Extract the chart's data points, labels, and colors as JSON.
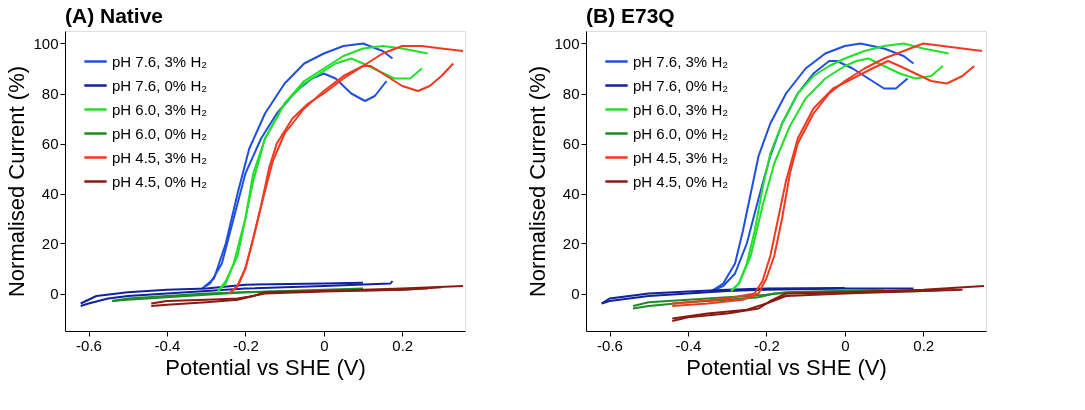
{
  "chart_data": [
    {
      "type": "line",
      "title": "(A) Native",
      "xlabel": "Potential vs SHE (V)",
      "ylabel": "Normalised Current (%)",
      "xlim": [
        -0.66,
        0.36
      ],
      "ylim": [
        -15,
        105
      ],
      "xticks": [
        -0.6,
        -0.4,
        -0.2,
        0,
        0.2
      ],
      "yticks": [
        0,
        20,
        40,
        60,
        80,
        100
      ],
      "grid": false,
      "legend": "top left",
      "series": [
        {
          "name": "pH 7.6, 3% H₂",
          "color": "#1f4fe0",
          "x": [
            -0.31,
            -0.28,
            -0.25,
            -0.22,
            -0.19,
            -0.15,
            -0.1,
            -0.05,
            0,
            0.05,
            0.1,
            0.15,
            0.175
          ],
          "values": [
            2,
            6,
            20,
            40,
            58,
            72,
            84,
            92,
            96,
            99,
            100,
            97,
            94
          ]
        },
        {
          "color": "#1f4fe0",
          "x": [
            0.16,
            0.13,
            0.105,
            0.07,
            0.03,
            0,
            -0.03,
            -0.07,
            -0.12,
            -0.16,
            -0.2,
            -0.23,
            -0.26,
            -0.29,
            -0.31
          ],
          "values": [
            85,
            79,
            77,
            80,
            86,
            88,
            86,
            81,
            72,
            62,
            48,
            30,
            12,
            4,
            2
          ]
        },
        {
          "name": "pH 7.6, 0% H₂",
          "color": "#10239a",
          "x": [
            -0.62,
            -0.6,
            -0.55,
            -0.5,
            -0.4,
            -0.3,
            -0.2,
            0,
            0.17,
            0.175
          ],
          "values": [
            -5,
            -4,
            -2,
            -1,
            0,
            1,
            2,
            3,
            4,
            5
          ]
        },
        {
          "color": "#10239a",
          "x": [
            0.1,
            0,
            -0.2,
            -0.3,
            -0.4,
            -0.5,
            -0.58,
            -0.62
          ],
          "values": [
            4.3,
            4,
            3.5,
            2,
            1.5,
            0.5,
            -1,
            -4
          ]
        },
        {
          "name": "pH 6.0, 3% H₂",
          "color": "#22e02a",
          "x": [
            -0.27,
            -0.25,
            -0.22,
            -0.2,
            -0.18,
            -0.15,
            -0.1,
            -0.05,
            0,
            0.05,
            0.1,
            0.15,
            0.2,
            0.265
          ],
          "values": [
            1,
            5,
            15,
            30,
            48,
            62,
            76,
            85,
            90,
            95,
            98,
            99,
            98,
            96
          ]
        },
        {
          "color": "#22e02a",
          "x": [
            0.25,
            0.22,
            0.18,
            0.14,
            0.1,
            0.07,
            0.03,
            0,
            -0.05,
            -0.1,
            -0.15,
            -0.18,
            -0.2,
            -0.23,
            -0.25,
            -0.27
          ],
          "values": [
            90,
            86,
            86,
            89,
            92,
            94,
            92,
            89,
            84,
            76,
            62,
            45,
            30,
            12,
            4,
            1
          ]
        },
        {
          "name": "pH 6.0, 0% H₂",
          "color": "#1f8a2a",
          "x": [
            -0.54,
            -0.5,
            -0.4,
            -0.3,
            -0.2,
            0,
            0.2,
            0.265
          ],
          "values": [
            -3,
            -2.5,
            -1.5,
            -0.5,
            0.5,
            1,
            1.5,
            2
          ]
        },
        {
          "color": "#1f8a2a",
          "x": [
            0.1,
            0,
            -0.2,
            -0.3,
            -0.4,
            -0.5,
            -0.54
          ],
          "values": [
            2,
            1.5,
            0.5,
            0,
            -1,
            -2,
            -3
          ]
        },
        {
          "name": "pH 4.5, 3% H₂",
          "color": "#f03a20",
          "x": [
            -0.24,
            -0.22,
            -0.2,
            -0.18,
            -0.16,
            -0.14,
            -0.12,
            -0.08,
            -0.04,
            0,
            0.05,
            0.1,
            0.15,
            0.2,
            0.25,
            0.3,
            0.355
          ],
          "values": [
            0,
            3,
            10,
            22,
            35,
            50,
            60,
            70,
            76,
            80,
            86,
            91,
            96,
            99,
            99,
            98,
            97
          ]
        },
        {
          "color": "#f03a20",
          "x": [
            0.33,
            0.3,
            0.27,
            0.24,
            0.2,
            0.16,
            0.12,
            0.1,
            0.05,
            0,
            -0.05,
            -0.1,
            -0.13,
            -0.16,
            -0.18,
            -0.2,
            -0.22,
            -0.24
          ],
          "values": [
            92,
            87,
            83,
            81,
            83,
            87,
            91,
            91,
            87,
            81,
            74,
            64,
            53,
            35,
            22,
            10,
            3,
            0
          ]
        },
        {
          "name": "pH 4.5, 0% H₂",
          "color": "#8b1a12",
          "x": [
            -0.44,
            -0.4,
            -0.3,
            -0.22,
            -0.18,
            -0.15,
            0,
            0.2,
            0.355
          ],
          "values": [
            -5,
            -4.5,
            -3.5,
            -2.5,
            -1,
            0.5,
            1,
            2,
            3
          ]
        },
        {
          "color": "#8b1a12",
          "x": [
            0.3,
            0.2,
            0,
            -0.15,
            -0.18,
            -0.22,
            -0.3,
            -0.4,
            -0.44
          ],
          "values": [
            2.5,
            1.5,
            0.8,
            0,
            -1,
            -2,
            -2.5,
            -3,
            -4
          ]
        }
      ]
    },
    {
      "type": "line",
      "title": "(B) E73Q",
      "xlabel": "Potential vs SHE (V)",
      "ylabel": "Normalised Current (%)",
      "xlim": [
        -0.66,
        0.36
      ],
      "ylim": [
        -15,
        105
      ],
      "xticks": [
        -0.6,
        -0.4,
        -0.2,
        0,
        0.2
      ],
      "yticks": [
        0,
        20,
        40,
        60,
        80,
        100
      ],
      "grid": false,
      "legend": "top left",
      "series": [
        {
          "name": "pH 7.6, 3% H₂",
          "color": "#1f4fe0",
          "x": [
            -0.34,
            -0.31,
            -0.28,
            -0.26,
            -0.24,
            -0.22,
            -0.19,
            -0.15,
            -0.1,
            -0.05,
            0,
            0.04,
            0.1,
            0.15,
            0.175
          ],
          "values": [
            1,
            4,
            12,
            25,
            40,
            55,
            68,
            80,
            90,
            96,
            99,
            100,
            98,
            95,
            92
          ]
        },
        {
          "color": "#1f4fe0",
          "x": [
            0.16,
            0.13,
            0.1,
            0.06,
            0.02,
            -0.02,
            -0.04,
            -0.08,
            -0.12,
            -0.16,
            -0.19,
            -0.22,
            -0.25,
            -0.28,
            -0.31,
            -0.34
          ],
          "values": [
            86,
            82,
            82,
            86,
            90,
            93,
            93,
            88,
            80,
            68,
            55,
            38,
            20,
            8,
            3,
            1
          ]
        },
        {
          "name": "pH 7.6, 0% H₂",
          "color": "#10239a",
          "x": [
            -0.62,
            -0.6,
            -0.5,
            -0.4,
            -0.3,
            -0.2,
            0,
            0.175
          ],
          "values": [
            -4,
            -3,
            -1,
            0,
            1,
            1.5,
            2,
            2
          ]
        },
        {
          "color": "#10239a",
          "x": [
            0,
            -0.2,
            -0.3,
            -0.4,
            -0.5,
            -0.6,
            -0.62
          ],
          "values": [
            2.2,
            2,
            1.5,
            0.8,
            0,
            -2,
            -4
          ]
        },
        {
          "name": "pH 6.0, 3% H₂",
          "color": "#22e02a",
          "x": [
            -0.29,
            -0.27,
            -0.25,
            -0.23,
            -0.21,
            -0.19,
            -0.16,
            -0.12,
            -0.08,
            -0.04,
            0,
            0.05,
            0.1,
            0.15,
            0.2,
            0.265
          ],
          "values": [
            1,
            4,
            12,
            25,
            42,
            56,
            68,
            80,
            87,
            91,
            94,
            97,
            99,
            100,
            98,
            96
          ]
        },
        {
          "color": "#22e02a",
          "x": [
            0.25,
            0.22,
            0.18,
            0.14,
            0.1,
            0.06,
            0.03,
            0,
            -0.05,
            -0.1,
            -0.14,
            -0.18,
            -0.21,
            -0.24,
            -0.27,
            -0.29
          ],
          "values": [
            91,
            87,
            86,
            88,
            91,
            94,
            93,
            91,
            86,
            78,
            67,
            52,
            35,
            15,
            4,
            1
          ]
        },
        {
          "name": "pH 6.0, 0% H₂",
          "color": "#1f8a2a",
          "x": [
            -0.54,
            -0.5,
            -0.4,
            -0.3,
            -0.22,
            -0.18,
            0,
            0.2,
            0.265
          ],
          "values": [
            -6,
            -5,
            -3.5,
            -2.5,
            -1.5,
            0,
            0.5,
            1,
            1.5
          ]
        },
        {
          "color": "#1f8a2a",
          "x": [
            0.1,
            -0.15,
            -0.2,
            -0.3,
            -0.4,
            -0.5,
            -0.54
          ],
          "values": [
            1.5,
            0.5,
            -0.5,
            -1.5,
            -2.5,
            -3.5,
            -5
          ]
        },
        {
          "name": "pH 4.5, 3% H₂",
          "color": "#f03a20",
          "x": [
            -0.44,
            -0.35,
            -0.26,
            -0.22,
            -0.2,
            -0.18,
            -0.16,
            -0.14,
            -0.12,
            -0.08,
            -0.04,
            0,
            0.05,
            0.1,
            0.15,
            0.2,
            0.25,
            0.3,
            0.35
          ],
          "values": [
            -5,
            -4,
            -2.5,
            0,
            6,
            15,
            30,
            48,
            60,
            72,
            80,
            85,
            90,
            94,
            97,
            100,
            99,
            98,
            97
          ]
        },
        {
          "color": "#f03a20",
          "x": [
            0.33,
            0.3,
            0.26,
            0.22,
            0.18,
            0.14,
            0.11,
            0.07,
            0.02,
            -0.03,
            -0.08,
            -0.12,
            -0.15,
            -0.17,
            -0.19,
            -0.21,
            -0.23,
            -0.3,
            -0.4,
            -0.44
          ],
          "values": [
            91,
            87,
            84,
            85,
            88,
            91,
            93,
            90,
            86,
            82,
            74,
            62,
            45,
            30,
            15,
            5,
            0,
            -2,
            -3.5,
            -4
          ]
        },
        {
          "name": "pH 4.5, 0% H₂",
          "color": "#8b1a12",
          "x": [
            -0.44,
            -0.4,
            -0.3,
            -0.22,
            -0.19,
            -0.15,
            0,
            0.2,
            0.355
          ],
          "values": [
            -11,
            -9.5,
            -8,
            -6,
            -3,
            0,
            0.5,
            1.5,
            3
          ]
        },
        {
          "color": "#8b1a12",
          "x": [
            0.3,
            0,
            -0.15,
            -0.2,
            -0.25,
            -0.35,
            -0.44
          ],
          "values": [
            1.5,
            0,
            -1,
            -4,
            -6.5,
            -8,
            -10
          ]
        }
      ]
    }
  ]
}
